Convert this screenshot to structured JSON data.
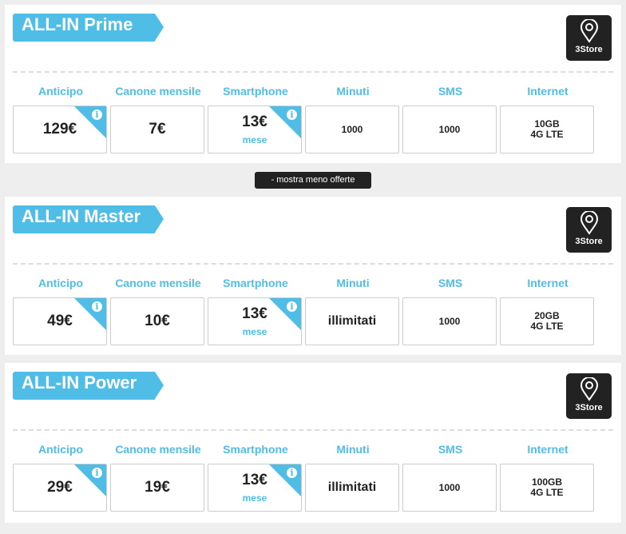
{
  "columns": [
    "Anticipo",
    "Canone mensile",
    "Smartphone",
    "Minuti",
    "SMS",
    "Internet"
  ],
  "store_label": "3Store",
  "toggle_button": "- mostra meno offerte",
  "accent": "#4fbde6",
  "offers": [
    {
      "name": "ALL-IN Prime",
      "anticipo": "129€",
      "canone": "7€",
      "smartphone": "13€",
      "smartphone_unit": "mese",
      "minuti": "1000",
      "sms": "1000",
      "internet": [
        "10GB",
        "4G LTE"
      ]
    },
    {
      "name": "ALL-IN Master",
      "anticipo": "49€",
      "canone": "10€",
      "smartphone": "13€",
      "smartphone_unit": "mese",
      "minuti": "illimitati",
      "sms": "1000",
      "internet": [
        "20GB",
        "4G LTE"
      ]
    },
    {
      "name": "ALL-IN Power",
      "anticipo": "29€",
      "canone": "19€",
      "smartphone": "13€",
      "smartphone_unit": "mese",
      "minuti": "illimitati",
      "sms": "1000",
      "internet": [
        "100GB",
        "4G LTE"
      ]
    }
  ]
}
